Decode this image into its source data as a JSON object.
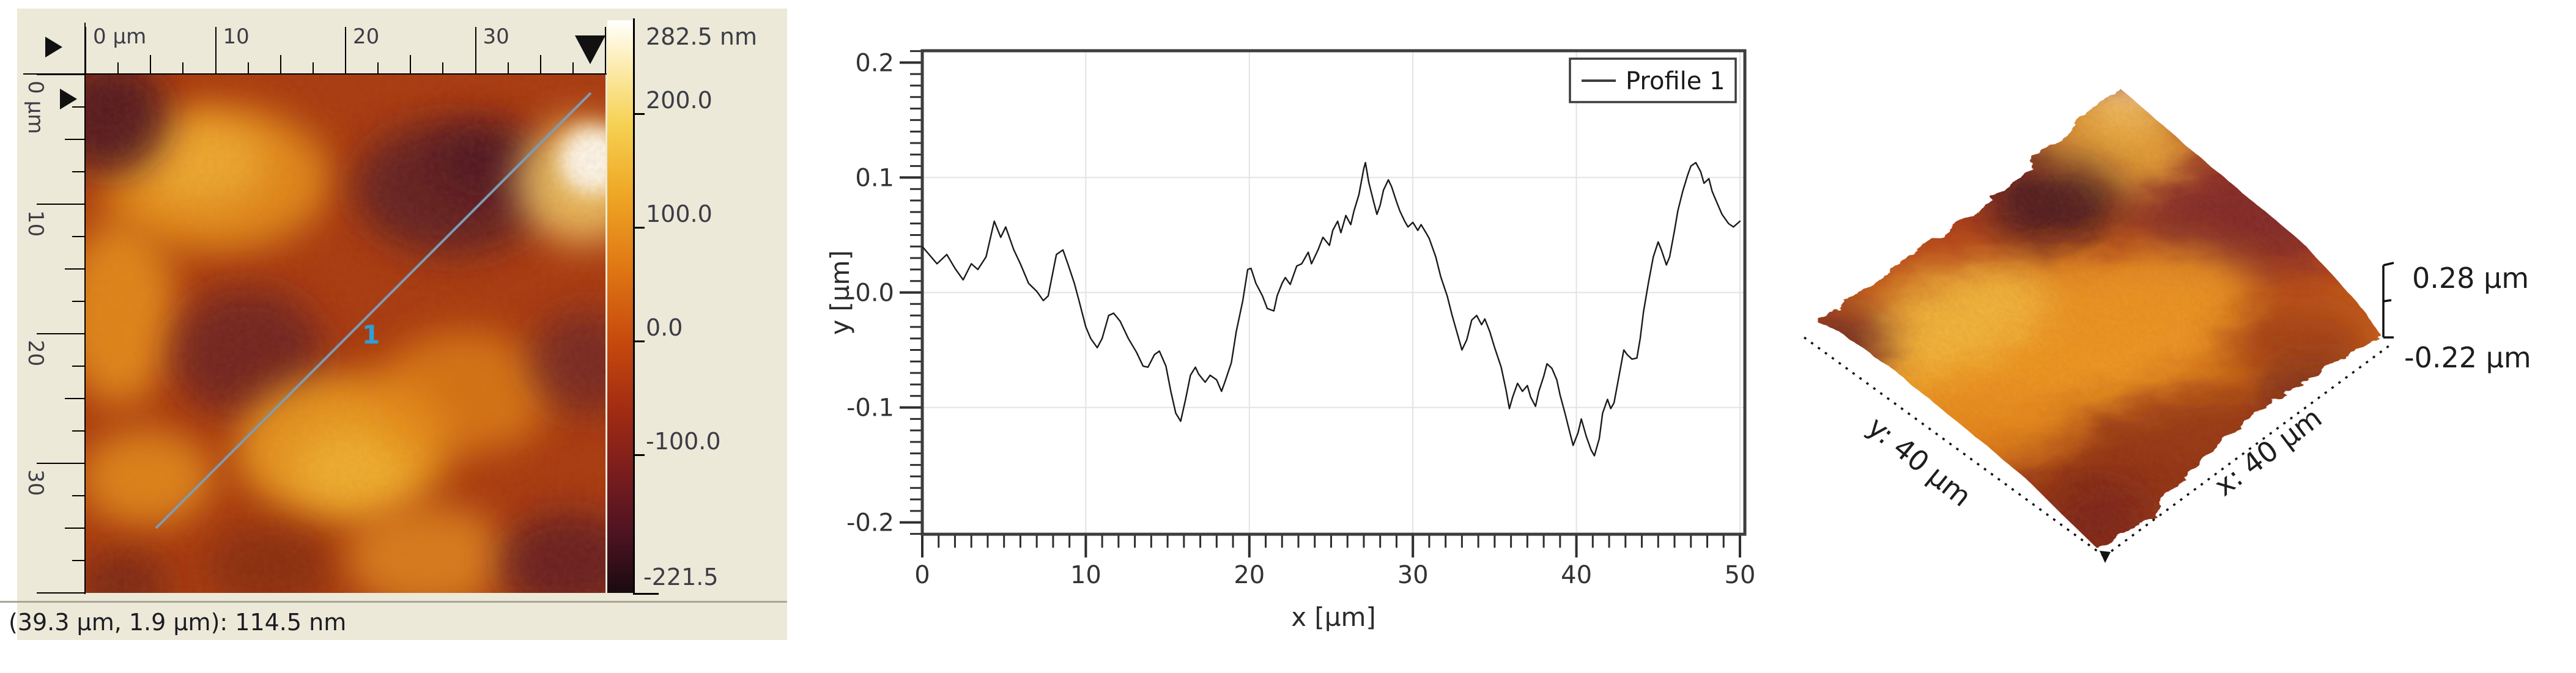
{
  "topography_panel": {
    "panel_bg": "#ece9d8",
    "top_ruler": {
      "length_um": 40,
      "minor_step": 2.5,
      "medium_step": 5,
      "major_step": 10,
      "major_labels": [
        "0 µm",
        "10",
        "20",
        "30"
      ]
    },
    "left_ruler": {
      "length_um": 40,
      "minor_step": 2.5,
      "medium_step": 5,
      "major_step": 10,
      "major_labels": [
        "0 µm",
        "10",
        "20",
        "30"
      ]
    },
    "profile_line": {
      "label": "1",
      "color": "#7e9cb5",
      "label_color": "#2f9fd6"
    },
    "color_scale": {
      "top_label": "282.5 nm",
      "value_max": 282.5,
      "value_min": -221.5,
      "tick_values": [
        200,
        100,
        0,
        -100
      ],
      "tick_labels": [
        "200.0",
        "100.0",
        "0.0",
        "-100.0"
      ],
      "bottom_label": "-221.5"
    },
    "status_bar": {
      "text": "(39.3 µm, 1.9 µm): 114.5 nm"
    }
  },
  "chart_data": {
    "type": "line",
    "title": "",
    "xlabel": "x [µm]",
    "ylabel": "y [µm]",
    "xlim": [
      0,
      50.3
    ],
    "ylim": [
      -0.2103,
      0.2103
    ],
    "xticks": {
      "values": [
        0,
        10,
        20,
        30,
        40,
        50
      ],
      "labels": [
        "0",
        "10",
        "20",
        "30",
        "40",
        "50"
      ],
      "minor_step": 1
    },
    "yticks": {
      "values": [
        0.2,
        0.1,
        0,
        -0.1,
        -0.2
      ],
      "labels": [
        "0.2",
        "0.1",
        "0.0",
        "-0.1",
        "-0.2"
      ],
      "minor_step": 0.01
    },
    "grid": {
      "x_values": [
        10,
        20,
        30,
        40,
        50
      ],
      "y_values": [
        0.1,
        0,
        -0.1
      ],
      "color": "#e3e3e3"
    },
    "legend": {
      "position": "top-right"
    },
    "series": [
      {
        "name": "Profile 1",
        "color": "#1a1a1a",
        "x": [
          0,
          0.9,
          1.5,
          2,
          2.5,
          3,
          3.4,
          3.9,
          4.4,
          4.8,
          5.1,
          5.6,
          6,
          6.5,
          7,
          7.4,
          7.7,
          8.2,
          8.6,
          8.9,
          9.3,
          9.6,
          10,
          10.3,
          10.7,
          11,
          11.4,
          11.7,
          12.1,
          12.6,
          13.1,
          13.5,
          13.8,
          14.2,
          14.5,
          14.9,
          15.2,
          15.5,
          15.8,
          16.1,
          16.4,
          16.7,
          16.9,
          17.3,
          17.6,
          18,
          18.3,
          18.5,
          18.9,
          19.2,
          19.6,
          19.9,
          20.1,
          20.4,
          20.8,
          21.1,
          21.5,
          21.7,
          22,
          22.2,
          22.5,
          22.9,
          23.2,
          23.6,
          23.8,
          24.2,
          24.5,
          24.9,
          25.1,
          25.4,
          25.6,
          25.9,
          26.2,
          26.4,
          26.7,
          27,
          27.1,
          27.3,
          27.6,
          27.8,
          28,
          28.2,
          28.5,
          28.7,
          29,
          29.2,
          29.5,
          29.7,
          30,
          30.3,
          30.5,
          30.8,
          31,
          31.4,
          31.7,
          32.1,
          32.4,
          32.8,
          33,
          33.3,
          33.6,
          33.9,
          34.2,
          34.4,
          34.7,
          35,
          35.4,
          35.7,
          35.9,
          36.1,
          36.4,
          36.7,
          37,
          37.2,
          37.5,
          37.7,
          38,
          38.2,
          38.5,
          38.8,
          39,
          39.3,
          39.6,
          39.8,
          40.1,
          40.3,
          40.6,
          40.9,
          41.1,
          41.4,
          41.6,
          41.9,
          42.1,
          42.3,
          42.6,
          42.9,
          43.1,
          43.4,
          43.7,
          43.9,
          44.1,
          44.4,
          44.7,
          45,
          45.2,
          45.5,
          45.7,
          46,
          46.2,
          46.5,
          46.8,
          47,
          47.3,
          47.6,
          47.8,
          48.1,
          48.3,
          48.6,
          48.9,
          49.3,
          49.6,
          50
        ],
        "y": [
          0.04,
          0.025,
          0.033,
          0.021,
          0.011,
          0.025,
          0.02,
          0.031,
          0.062,
          0.048,
          0.057,
          0.037,
          0.025,
          0.008,
          0.001,
          -0.007,
          -0.003,
          0.033,
          0.037,
          0.025,
          0.008,
          -0.008,
          -0.03,
          -0.04,
          -0.048,
          -0.04,
          -0.02,
          -0.018,
          -0.025,
          -0.04,
          -0.052,
          -0.064,
          -0.065,
          -0.054,
          -0.051,
          -0.064,
          -0.086,
          -0.105,
          -0.112,
          -0.093,
          -0.072,
          -0.065,
          -0.071,
          -0.078,
          -0.072,
          -0.076,
          -0.086,
          -0.078,
          -0.061,
          -0.034,
          -0.007,
          0.02,
          0.021,
          0.008,
          -0.003,
          -0.014,
          -0.016,
          -0.003,
          0.008,
          0.013,
          0.007,
          0.023,
          0.025,
          0.035,
          0.025,
          0.037,
          0.048,
          0.041,
          0.054,
          0.062,
          0.052,
          0.067,
          0.059,
          0.071,
          0.085,
          0.108,
          0.113,
          0.096,
          0.079,
          0.068,
          0.076,
          0.089,
          0.098,
          0.092,
          0.079,
          0.071,
          0.062,
          0.057,
          0.061,
          0.054,
          0.059,
          0.052,
          0.047,
          0.031,
          0.014,
          -0.003,
          -0.02,
          -0.04,
          -0.05,
          -0.041,
          -0.024,
          -0.02,
          -0.028,
          -0.023,
          -0.034,
          -0.048,
          -0.065,
          -0.085,
          -0.101,
          -0.091,
          -0.079,
          -0.086,
          -0.081,
          -0.091,
          -0.099,
          -0.086,
          -0.073,
          -0.062,
          -0.066,
          -0.076,
          -0.089,
          -0.105,
          -0.122,
          -0.133,
          -0.122,
          -0.11,
          -0.125,
          -0.137,
          -0.142,
          -0.127,
          -0.105,
          -0.093,
          -0.101,
          -0.096,
          -0.073,
          -0.05,
          -0.054,
          -0.058,
          -0.057,
          -0.04,
          -0.017,
          0.008,
          0.031,
          0.044,
          0.037,
          0.024,
          0.031,
          0.054,
          0.071,
          0.088,
          0.102,
          0.11,
          0.113,
          0.105,
          0.095,
          0.099,
          0.088,
          0.078,
          0.068,
          0.06,
          0.057,
          0.062
        ]
      }
    ]
  },
  "surface_panel": {
    "z_max_label": "0.28 µm",
    "z_min_label": "-0.22 µm",
    "y_axis_label": "y: 40 µm",
    "x_axis_label": "x: 40 µm"
  }
}
